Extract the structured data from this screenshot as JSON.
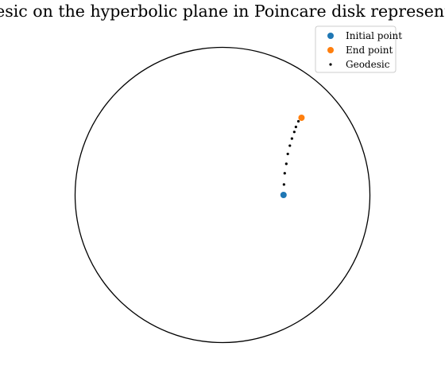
{
  "chart_data": {
    "type": "scatter",
    "title": "Geodesic on the hyperbolic plane in Poincare disk representation",
    "xlim": [
      -1.0,
      1.0
    ],
    "ylim": [
      -1.0,
      1.0
    ],
    "aspect": "equal",
    "axes_visible": false,
    "grid": false,
    "boundary": {
      "type": "circle",
      "center": [
        0,
        0
      ],
      "radius": 1.0,
      "color": "#000000"
    },
    "legend": {
      "placement": "top-right",
      "entries": [
        "Initial point",
        "End point",
        "Geodesic"
      ]
    },
    "series": [
      {
        "name": "Initial point",
        "color": "#1f77b4",
        "marker": "circle",
        "points": [
          {
            "x": 0.414,
            "y": 0.0
          }
        ]
      },
      {
        "name": "End point",
        "color": "#ff7f0e",
        "marker": "circle",
        "points": [
          {
            "x": 0.536,
            "y": 0.523
          }
        ]
      },
      {
        "name": "Geodesic",
        "color": "#000000",
        "marker": "dot",
        "points": [
          {
            "x": 0.414,
            "y": 0.0
          },
          {
            "x": 0.417,
            "y": 0.071
          },
          {
            "x": 0.422,
            "y": 0.147
          },
          {
            "x": 0.433,
            "y": 0.211
          },
          {
            "x": 0.443,
            "y": 0.278
          },
          {
            "x": 0.457,
            "y": 0.334
          },
          {
            "x": 0.471,
            "y": 0.382
          },
          {
            "x": 0.487,
            "y": 0.427
          },
          {
            "x": 0.498,
            "y": 0.461
          },
          {
            "x": 0.515,
            "y": 0.499
          },
          {
            "x": 0.536,
            "y": 0.523
          }
        ]
      }
    ]
  }
}
